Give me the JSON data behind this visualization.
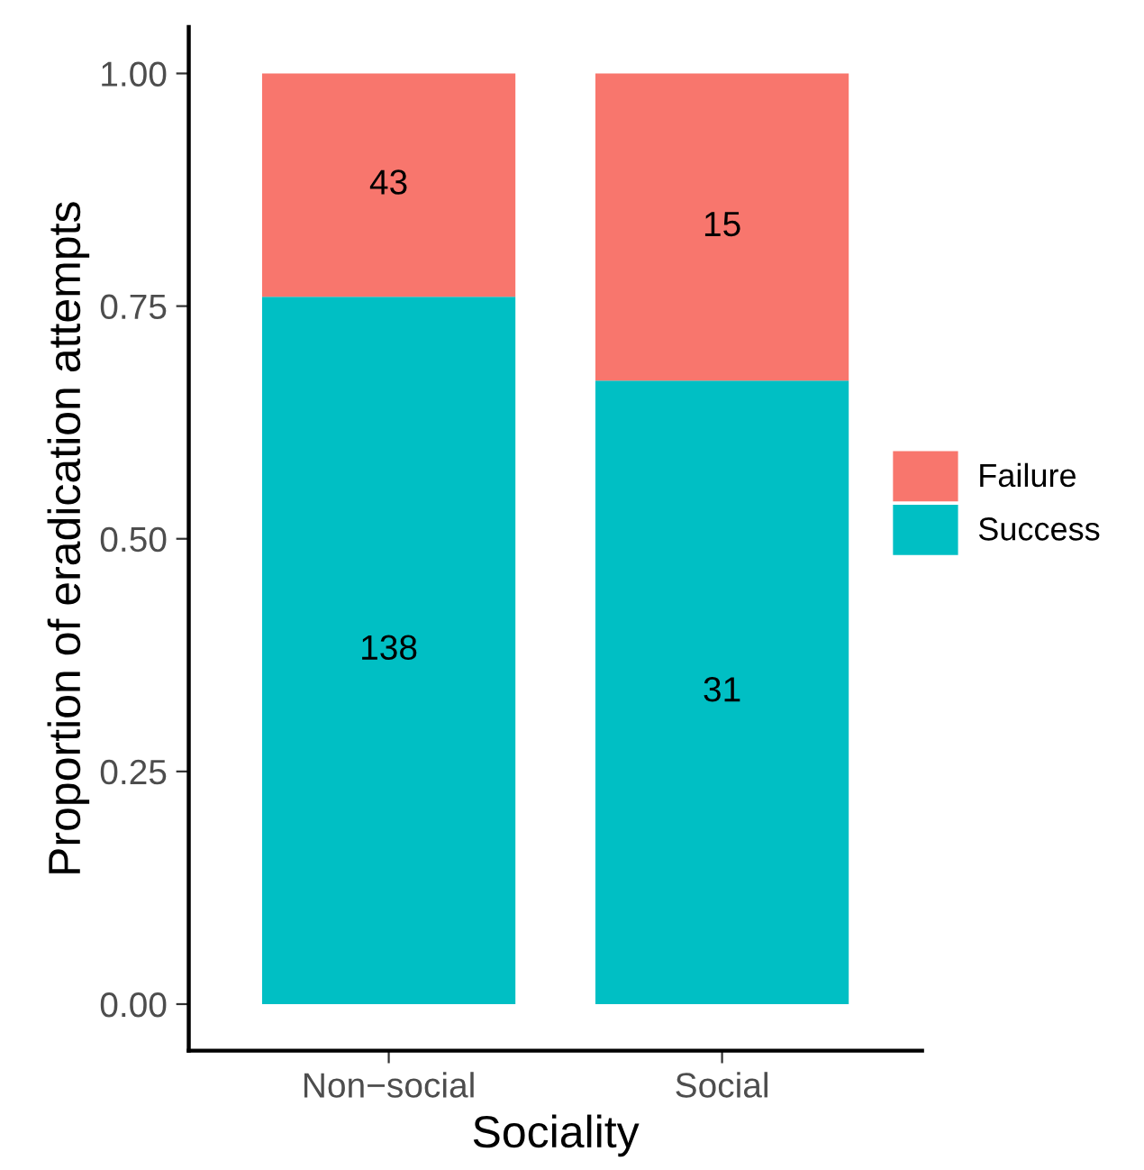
{
  "chart_data": {
    "type": "bar",
    "stacked": true,
    "xlabel": "Sociality",
    "ylabel": "Proportion of eradication attempts",
    "categories": [
      "Non−social",
      "Social"
    ],
    "series": [
      {
        "name": "Success",
        "color": "#00bfc4",
        "values": [
          0.76,
          0.67
        ]
      },
      {
        "name": "Failure",
        "color": "#f8766d",
        "values": [
          0.24,
          0.33
        ]
      }
    ],
    "annotations": [
      "138",
      "31",
      "43",
      "15"
    ],
    "ylim": [
      -0.05,
      1.05
    ],
    "yticks": [
      {
        "value": 0,
        "label": "0.00"
      },
      {
        "value": 0.25,
        "label": "0.25"
      },
      {
        "value": 0.5,
        "label": "0.50"
      },
      {
        "value": 0.75,
        "label": "0.75"
      },
      {
        "value": 1,
        "label": "1.00"
      }
    ],
    "grid": false,
    "legend": "right"
  }
}
